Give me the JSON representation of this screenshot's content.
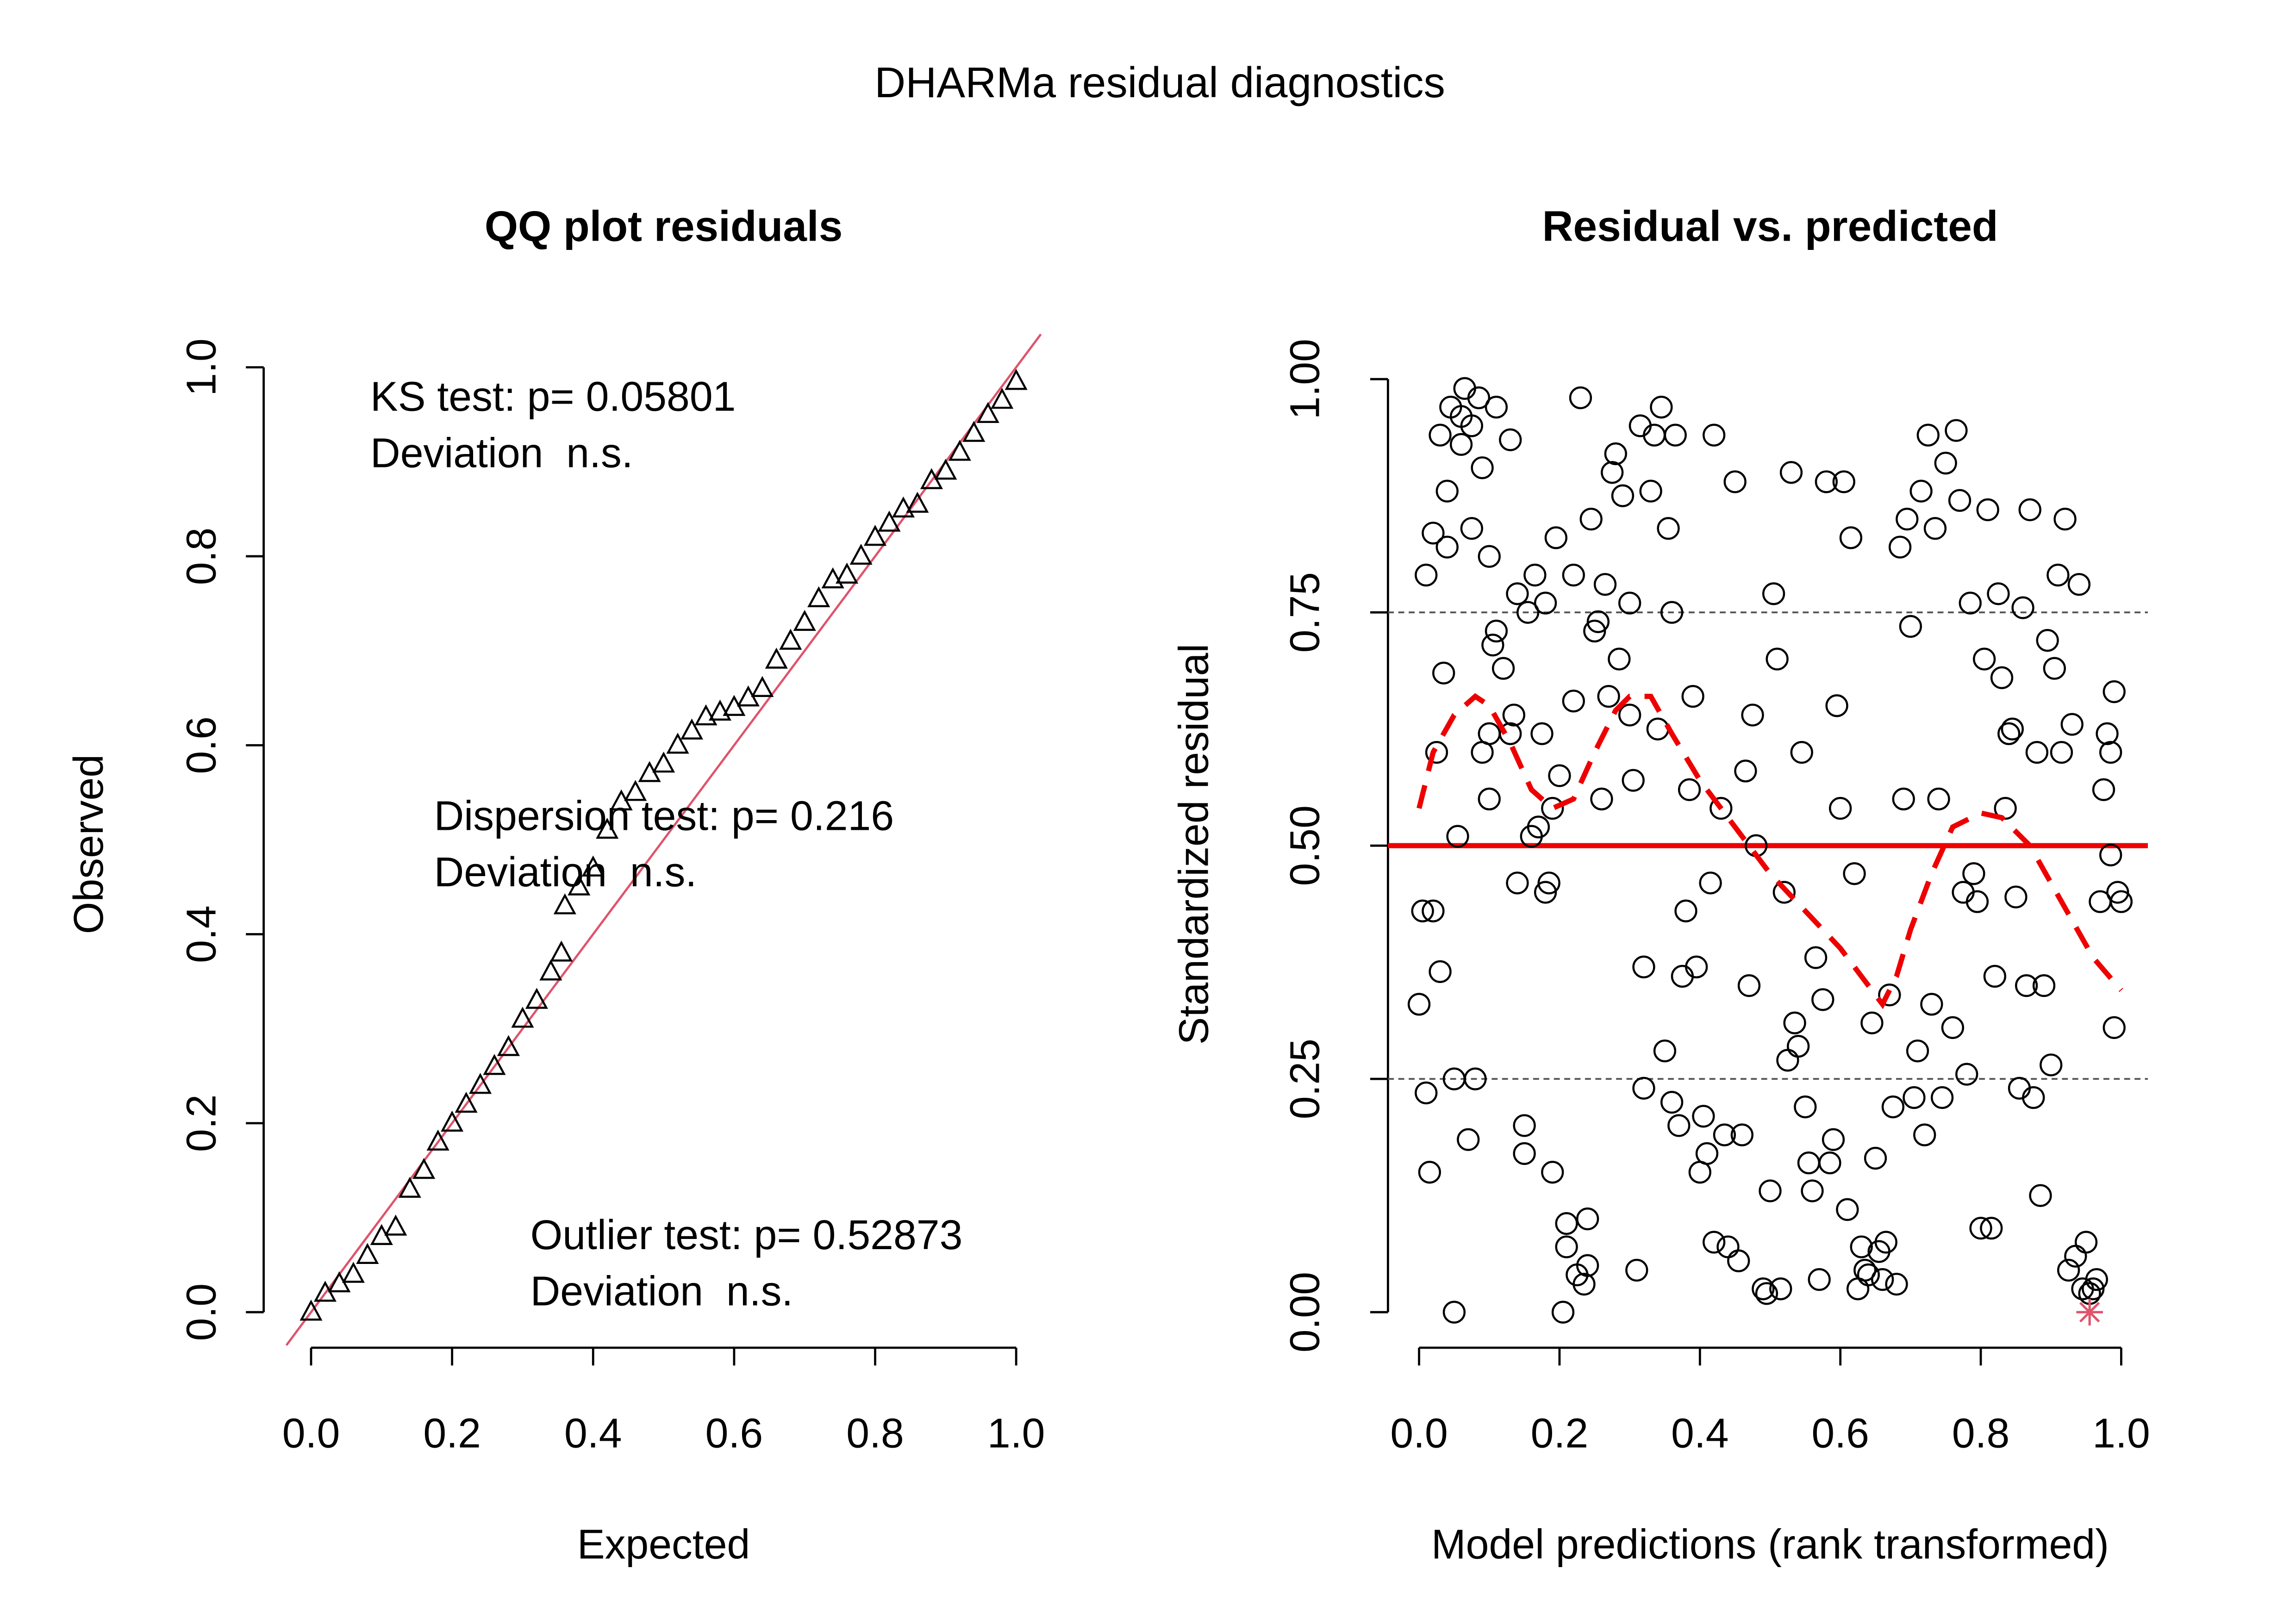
{
  "title": "DHARMa residual diagnostics",
  "chart_data": [
    {
      "type": "scatter",
      "title": "QQ plot residuals",
      "x_label": "Expected",
      "y_label": "Observed",
      "xlim": [
        0,
        1
      ],
      "ylim": [
        0,
        1
      ],
      "xticks": [
        {
          "value": 0,
          "label": "0.0"
        },
        0.2,
        0.4,
        0.6,
        0.8,
        {
          "value": 1,
          "label": "1.0"
        }
      ],
      "yticks": [
        {
          "value": 0,
          "label": "0.0"
        },
        0.2,
        0.4,
        0.6,
        0.8,
        {
          "value": 1,
          "label": "1.0"
        }
      ],
      "reference_line_color": "#df536b",
      "annotations": [
        "KS test: p= 0.05801",
        "Deviation  n.s.",
        "Dispersion test: p= 0.216",
        "Deviation  n.s.",
        "Outlier test: p= 0.52873",
        "Deviation  n.s."
      ],
      "series": [
        {
          "color": "#000000",
          "marker": "triangle",
          "x": [
            0,
            0.02,
            0.04,
            0.06,
            0.08,
            0.1,
            0.12,
            0.14,
            0.16,
            0.18,
            0.2,
            0.22,
            0.24,
            0.26,
            0.28,
            0.3,
            0.32,
            0.34,
            0.355,
            0.36,
            0.38,
            0.4,
            0.42,
            0.44,
            0.46,
            0.48,
            0.5,
            0.52,
            0.54,
            0.56,
            0.58,
            0.6,
            0.62,
            0.64,
            0.66,
            0.68,
            0.7,
            0.72,
            0.74,
            0.76,
            0.78,
            0.8,
            0.82,
            0.84,
            0.86,
            0.88,
            0.9,
            0.92,
            0.94,
            0.96,
            0.98,
            1.0
          ],
          "values": [
            0,
            0.02,
            0.03,
            0.04,
            0.06,
            0.08,
            0.09,
            0.13,
            0.15,
            0.18,
            0.2,
            0.22,
            0.24,
            0.26,
            0.28,
            0.31,
            0.33,
            0.36,
            0.38,
            0.43,
            0.45,
            0.47,
            0.51,
            0.54,
            0.55,
            0.57,
            0.58,
            0.6,
            0.615,
            0.63,
            0.635,
            0.64,
            0.65,
            0.66,
            0.69,
            0.71,
            0.73,
            0.755,
            0.775,
            0.78,
            0.8,
            0.82,
            0.835,
            0.85,
            0.855,
            0.88,
            0.89,
            0.91,
            0.93,
            0.95,
            0.965,
            0.985
          ]
        }
      ]
    },
    {
      "type": "scatter",
      "title": "Residual vs. predicted",
      "x_label": "Model predictions (rank transformed)",
      "y_label": "Standardized residual",
      "xlim": [
        0,
        1
      ],
      "ylim": [
        0,
        1
      ],
      "xticks": [
        {
          "value": 0,
          "label": "0.0"
        },
        0.2,
        0.4,
        0.6,
        0.8,
        {
          "value": 1,
          "label": "1.0"
        }
      ],
      "yticks": [
        {
          "value": 0,
          "label": "0.00"
        },
        0.25,
        {
          "value": 0.5,
          "label": "0.50"
        },
        0.75,
        {
          "value": 1,
          "label": "1.00"
        }
      ],
      "hlines": [
        {
          "value": 0.25,
          "color": "#555555",
          "style": "dashed"
        },
        {
          "value": 0.5,
          "color": "#ee0000",
          "style": "solid"
        },
        {
          "value": 0.75,
          "color": "#555555",
          "style": "dashed"
        }
      ],
      "series": [
        {
          "color": "#000000",
          "marker": "circle",
          "x": [
            0.0,
            0.005,
            0.01,
            0.01,
            0.015,
            0.02,
            0.02,
            0.025,
            0.03,
            0.03,
            0.035,
            0.04,
            0.04,
            0.045,
            0.05,
            0.05,
            0.055,
            0.06,
            0.06,
            0.065,
            0.07,
            0.075,
            0.075,
            0.08,
            0.085,
            0.09,
            0.09,
            0.1,
            0.1,
            0.1,
            0.105,
            0.11,
            0.11,
            0.12,
            0.13,
            0.13,
            0.135,
            0.14,
            0.14,
            0.15,
            0.15,
            0.155,
            0.16,
            0.165,
            0.17,
            0.175,
            0.18,
            0.18,
            0.185,
            0.19,
            0.19,
            0.195,
            0.2,
            0.205,
            0.21,
            0.21,
            0.22,
            0.22,
            0.225,
            0.23,
            0.235,
            0.24,
            0.24,
            0.245,
            0.25,
            0.255,
            0.26,
            0.265,
            0.27,
            0.275,
            0.28,
            0.285,
            0.29,
            0.3,
            0.3,
            0.305,
            0.31,
            0.315,
            0.32,
            0.32,
            0.33,
            0.335,
            0.34,
            0.345,
            0.35,
            0.355,
            0.36,
            0.36,
            0.365,
            0.37,
            0.375,
            0.38,
            0.385,
            0.39,
            0.395,
            0.4,
            0.405,
            0.41,
            0.415,
            0.42,
            0.42,
            0.43,
            0.435,
            0.44,
            0.45,
            0.455,
            0.46,
            0.465,
            0.47,
            0.475,
            0.48,
            0.49,
            0.495,
            0.5,
            0.505,
            0.51,
            0.515,
            0.52,
            0.525,
            0.53,
            0.535,
            0.54,
            0.545,
            0.55,
            0.555,
            0.56,
            0.565,
            0.57,
            0.575,
            0.58,
            0.585,
            0.59,
            0.595,
            0.6,
            0.605,
            0.61,
            0.615,
            0.62,
            0.625,
            0.63,
            0.635,
            0.64,
            0.645,
            0.65,
            0.655,
            0.66,
            0.665,
            0.67,
            0.675,
            0.68,
            0.685,
            0.69,
            0.695,
            0.7,
            0.705,
            0.71,
            0.715,
            0.72,
            0.725,
            0.73,
            0.735,
            0.74,
            0.745,
            0.75,
            0.76,
            0.765,
            0.77,
            0.775,
            0.78,
            0.785,
            0.79,
            0.795,
            0.8,
            0.805,
            0.81,
            0.815,
            0.82,
            0.825,
            0.83,
            0.835,
            0.84,
            0.845,
            0.85,
            0.855,
            0.86,
            0.865,
            0.87,
            0.875,
            0.88,
            0.885,
            0.89,
            0.895,
            0.9,
            0.905,
            0.91,
            0.915,
            0.92,
            0.925,
            0.93,
            0.935,
            0.94,
            0.945,
            0.95,
            0.955,
            0.96,
            0.965,
            0.97,
            0.975,
            0.98,
            0.985,
            0.985,
            0.99,
            0.99,
            0.995,
            1.0
          ],
          "values": [
            0.33,
            0.43,
            0.235,
            0.79,
            0.15,
            0.835,
            0.43,
            0.6,
            0.365,
            0.94,
            0.685,
            0.88,
            0.82,
            0.97,
            0.0,
            0.25,
            0.51,
            0.93,
            0.96,
            0.99,
            0.185,
            0.84,
            0.95,
            0.25,
            0.98,
            0.905,
            0.6,
            0.62,
            0.81,
            0.55,
            0.715,
            0.97,
            0.73,
            0.69,
            0.935,
            0.62,
            0.64,
            0.46,
            0.77,
            0.17,
            0.2,
            0.75,
            0.51,
            0.79,
            0.52,
            0.62,
            0.45,
            0.76,
            0.46,
            0.15,
            0.54,
            0.83,
            0.575,
            0.0,
            0.07,
            0.095,
            0.655,
            0.79,
            0.04,
            0.98,
            0.03,
            0.1,
            0.05,
            0.85,
            0.73,
            0.74,
            0.55,
            0.78,
            0.66,
            0.9,
            0.92,
            0.7,
            0.875,
            0.76,
            0.64,
            0.57,
            0.045,
            0.95,
            0.24,
            0.37,
            0.88,
            0.94,
            0.625,
            0.97,
            0.28,
            0.84,
            0.75,
            0.225,
            0.94,
            0.2,
            0.36,
            0.43,
            0.56,
            0.66,
            0.37,
            0.15,
            0.21,
            0.17,
            0.46,
            0.075,
            0.94,
            0.54,
            0.19,
            0.07,
            0.89,
            0.055,
            0.19,
            0.58,
            0.35,
            0.64,
            0.5,
            0.025,
            0.02,
            0.13,
            0.77,
            0.7,
            0.025,
            0.45,
            0.27,
            0.9,
            0.31,
            0.285,
            0.6,
            0.22,
            0.16,
            0.13,
            0.38,
            0.035,
            0.335,
            0.89,
            0.16,
            0.185,
            0.65,
            0.54,
            0.89,
            0.11,
            0.83,
            0.47,
            0.025,
            0.07,
            0.045,
            0.04,
            0.31,
            0.165,
            0.065,
            0.035,
            0.075,
            0.34,
            0.22,
            0.03,
            0.82,
            0.55,
            0.85,
            0.735,
            0.23,
            0.28,
            0.88,
            0.19,
            0.94,
            0.33,
            0.84,
            0.55,
            0.23,
            0.91,
            0.305,
            0.945,
            0.87,
            0.45,
            0.255,
            0.76,
            0.47,
            0.44,
            0.09,
            0.7,
            0.86,
            0.09,
            0.36,
            0.77,
            0.68,
            0.54,
            0.62,
            0.625,
            0.445,
            0.24,
            0.755,
            0.35,
            0.86,
            0.23,
            0.6,
            0.125,
            0.35,
            0.72,
            0.265,
            0.69,
            0.79,
            0.6,
            0.85,
            0.045,
            0.63,
            0.06,
            0.78,
            0.025,
            0.075,
            0.02,
            0.025,
            0.035,
            0.44,
            0.56,
            0.62,
            0.49,
            0.6,
            0.665,
            0.305,
            0.45,
            0.44
          ]
        },
        {
          "color": "#df536b",
          "marker": "star",
          "x": [
            0.955
          ],
          "values": [
            0.0
          ]
        },
        {
          "color": "#ee0000",
          "marker": "dashed-line",
          "x": [
            0,
            0.02,
            0.05,
            0.08,
            0.1,
            0.13,
            0.16,
            0.19,
            0.22,
            0.25,
            0.28,
            0.3,
            0.33,
            0.36,
            0.4,
            0.45,
            0.5,
            0.55,
            0.6,
            0.63,
            0.66,
            0.68,
            0.7,
            0.73,
            0.76,
            0.8,
            0.83,
            0.87,
            0.9,
            0.93,
            0.96,
            1.0
          ],
          "values": [
            0.54,
            0.6,
            0.64,
            0.66,
            0.65,
            0.61,
            0.56,
            0.54,
            0.55,
            0.6,
            0.645,
            0.66,
            0.66,
            0.62,
            0.57,
            0.52,
            0.47,
            0.43,
            0.39,
            0.36,
            0.33,
            0.36,
            0.41,
            0.47,
            0.52,
            0.535,
            0.53,
            0.5,
            0.46,
            0.42,
            0.38,
            0.345
          ]
        }
      ]
    }
  ]
}
